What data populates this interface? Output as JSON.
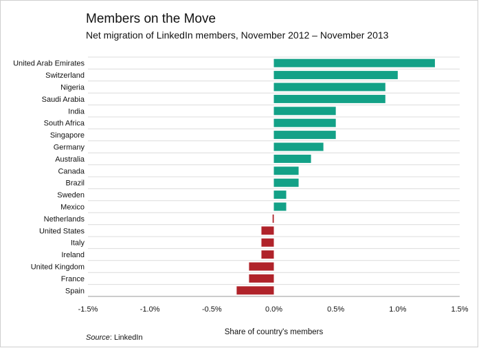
{
  "chart_data": {
    "type": "bar",
    "orientation": "horizontal",
    "title": "Members on the Move",
    "subtitle": "Net migration of LinkedIn members, November 2012 – November 2013",
    "categories": [
      "United Arab Emirates",
      "Switzerland",
      "Nigeria",
      "Saudi Arabia",
      "India",
      "South Africa",
      "Singapore",
      "Germany",
      "Australia",
      "Canada",
      "Brazil",
      "Sweden",
      "Mexico",
      "Netherlands",
      "United States",
      "Italy",
      "Ireland",
      "United Kingdom",
      "France",
      "Spain"
    ],
    "values": [
      1.3,
      1.0,
      0.9,
      0.9,
      0.5,
      0.5,
      0.5,
      0.4,
      0.3,
      0.2,
      0.2,
      0.1,
      0.1,
      -0.01,
      -0.1,
      -0.1,
      -0.1,
      -0.2,
      -0.2,
      -0.3
    ],
    "xlabel": "Share of country's members",
    "ylabel": "",
    "xlim": [
      -1.5,
      1.5
    ],
    "xticks": [
      "-1.5%",
      "-1.0%",
      "-0.5%",
      "0.0%",
      "0.5%",
      "1.0%",
      "1.5%"
    ],
    "grid": true,
    "colors": {
      "positive": "#13a187",
      "negative": "#b0232a"
    }
  },
  "source": {
    "label": "Source",
    "text": ": LinkedIn"
  }
}
